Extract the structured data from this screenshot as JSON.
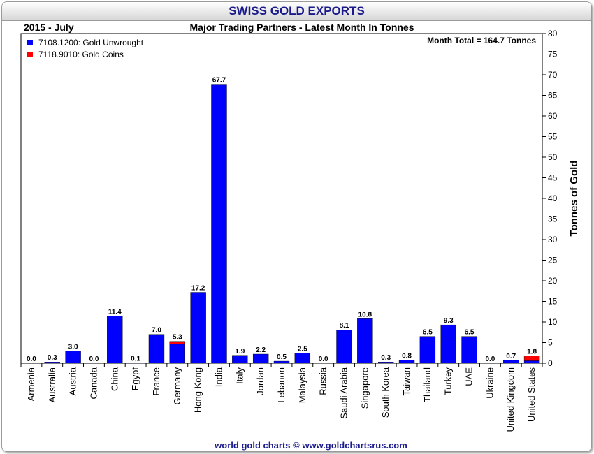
{
  "header": {
    "title": "SWISS GOLD EXPORTS",
    "period": "2015 - July",
    "subtitle": "Major Trading Partners - Latest Month In Tonnes"
  },
  "footer": {
    "credit": "world gold charts © www.goldchartsrus.com"
  },
  "chart_data": {
    "type": "bar",
    "stacked": true,
    "title": "Major Trading Partners - Latest Month In Tonnes",
    "ylabel": "Tonnes of Gold",
    "xlabel": "",
    "ylim": [
      0,
      80
    ],
    "y_ticks": [
      0,
      5,
      10,
      15,
      20,
      25,
      30,
      35,
      40,
      45,
      50,
      55,
      60,
      65,
      70,
      75,
      80
    ],
    "y_axis_side": "right",
    "grid": false,
    "legend_position": "top-left",
    "annotation": "Month Total = 164.7 Tonnes",
    "categories": [
      "Armenia",
      "Australia",
      "Austria",
      "Canada",
      "China",
      "Egypt",
      "France",
      "Germany",
      "Hong Kong",
      "India",
      "Italy",
      "Jordan",
      "Lebanon",
      "Malaysia",
      "Russia",
      "Saudi Arabia",
      "Singapore",
      "South Korea",
      "Taiwan",
      "Thailand",
      "Turkey",
      "UAE",
      "Ukraine",
      "United Kingdom",
      "United States"
    ],
    "series": [
      {
        "name": "7108.1200: Gold Unwrought",
        "color": "#0000ff",
        "values": [
          0.0,
          0.3,
          3.0,
          0.0,
          11.4,
          0.1,
          7.0,
          4.6,
          17.2,
          67.7,
          1.9,
          2.2,
          0.5,
          2.5,
          0.0,
          8.1,
          10.8,
          0.3,
          0.8,
          6.5,
          9.3,
          6.5,
          0.0,
          0.7,
          0.6
        ]
      },
      {
        "name": "7118.9010: Gold Coins",
        "color": "#ff0000",
        "values": [
          0.0,
          0.0,
          0.0,
          0.0,
          0.0,
          0.0,
          0.0,
          0.7,
          0.0,
          0.0,
          0.0,
          0.0,
          0.0,
          0.0,
          0.0,
          0.0,
          0.0,
          0.0,
          0.0,
          0.0,
          0.0,
          0.0,
          0.0,
          0.0,
          1.2
        ]
      }
    ],
    "data_labels": [
      "0.0",
      "0.3",
      "3.0",
      "0.0",
      "11.4",
      "0.1",
      "7.0",
      "5.3",
      "17.2",
      "67.7",
      "1.9",
      "2.2",
      "0.5",
      "2.5",
      "0.0",
      "8.1",
      "10.8",
      "0.3",
      "0.8",
      "6.5",
      "9.3",
      "6.5",
      "0.0",
      "0.7",
      "1.8"
    ]
  }
}
